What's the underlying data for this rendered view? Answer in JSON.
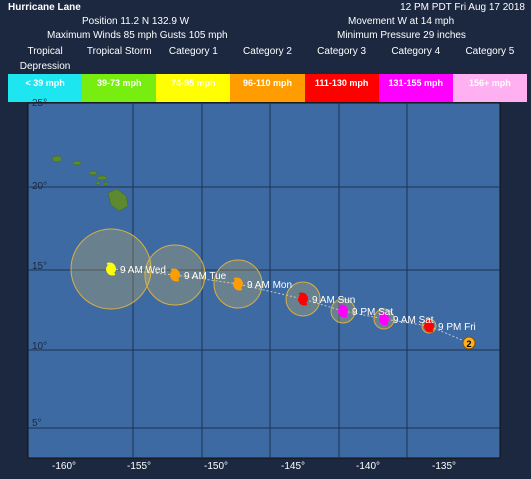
{
  "header": {
    "title": "Hurricane Lane",
    "time": "12 PM PDT Fri Aug 17 2018",
    "position": "Position 11.2 N 132.9 W",
    "movement": "Movement W at 14 mph",
    "winds": "Maximum Winds 85 mph Gusts 105 mph",
    "pressure": "Minimum Pressure 29 inches"
  },
  "legend": [
    {
      "name": "Tropical Depression",
      "range": "< 39 mph"
    },
    {
      "name": "Tropical Storm",
      "range": "39-73 mph"
    },
    {
      "name": "Category 1",
      "range": "74-95 mph"
    },
    {
      "name": "Category 2",
      "range": "96-110 mph"
    },
    {
      "name": "Category 3",
      "range": "111-130 mph"
    },
    {
      "name": "Category 4",
      "range": "131-155 mph"
    },
    {
      "name": "Category 5",
      "range": "156+ mph"
    }
  ],
  "map": {
    "lon_labels": [
      "-160°",
      "-155°",
      "-150°",
      "-145°",
      "-140°",
      "-135°"
    ],
    "lat_labels": [
      "25°",
      "20°",
      "15°",
      "10°",
      "5°"
    ],
    "current_category": "2",
    "track": [
      "9 PM Fri",
      "9 AM Sat",
      "9 PM Sat",
      "9 AM Sun",
      "9 AM Mon",
      "9 AM Tue",
      "9 AM Wed"
    ]
  }
}
